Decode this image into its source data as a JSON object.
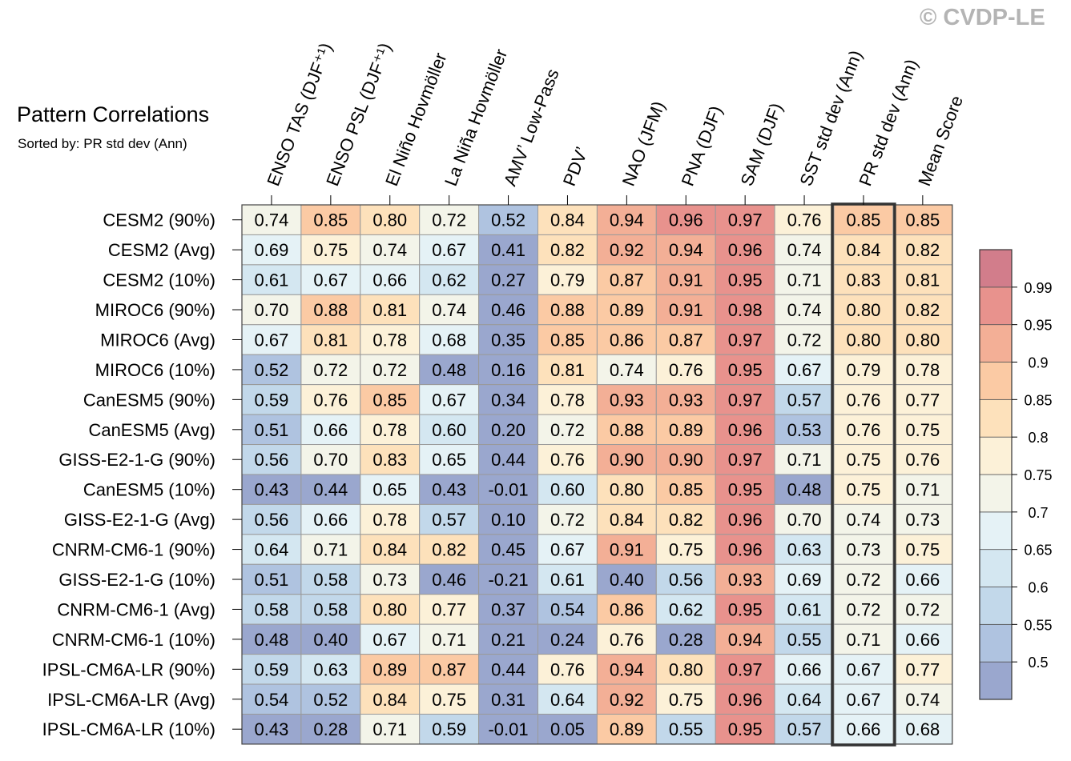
{
  "watermark": "© CVDP-LE",
  "chart_data": {
    "type": "heatmap",
    "title": "Pattern Correlations",
    "subtitle": "Sorted by: PR std dev (Ann)",
    "highlighted_column": "PR std dev (Ann)",
    "columns": [
      "ENSO TAS (DJF⁺¹)",
      "ENSO PSL (DJF⁺¹)",
      "El Niño Hovmöller",
      "La Niña Hovmöller",
      "AMV’ Low-Pass",
      "PDV’",
      "NAO (JFM)",
      "PNA (DJF)",
      "SAM (DJF)",
      "SST std dev (Ann)",
      "PR std dev (Ann)",
      "Mean Score"
    ],
    "rows": [
      "CESM2 (90%)",
      "CESM2 (Avg)",
      "CESM2 (10%)",
      "MIROC6 (90%)",
      "MIROC6 (Avg)",
      "MIROC6 (10%)",
      "CanESM5 (90%)",
      "CanESM5 (Avg)",
      "GISS-E2-1-G (90%)",
      "CanESM5 (10%)",
      "GISS-E2-1-G (Avg)",
      "CNRM-CM6-1 (90%)",
      "GISS-E2-1-G (10%)",
      "CNRM-CM6-1 (Avg)",
      "CNRM-CM6-1 (10%)",
      "IPSL-CM6A-LR (90%)",
      "IPSL-CM6A-LR (Avg)",
      "IPSL-CM6A-LR (10%)"
    ],
    "values": [
      [
        "0.74",
        "0.85",
        "0.80",
        "0.72",
        "0.52",
        "0.84",
        "0.94",
        "0.96",
        "0.97",
        "0.76",
        "0.85",
        "0.85"
      ],
      [
        "0.69",
        "0.75",
        "0.74",
        "0.67",
        "0.41",
        "0.82",
        "0.92",
        "0.94",
        "0.96",
        "0.74",
        "0.84",
        "0.82"
      ],
      [
        "0.61",
        "0.67",
        "0.66",
        "0.62",
        "0.27",
        "0.79",
        "0.87",
        "0.91",
        "0.95",
        "0.71",
        "0.83",
        "0.81"
      ],
      [
        "0.70",
        "0.88",
        "0.81",
        "0.74",
        "0.46",
        "0.88",
        "0.89",
        "0.91",
        "0.98",
        "0.74",
        "0.80",
        "0.82"
      ],
      [
        "0.67",
        "0.81",
        "0.78",
        "0.68",
        "0.35",
        "0.85",
        "0.86",
        "0.87",
        "0.97",
        "0.72",
        "0.80",
        "0.80"
      ],
      [
        "0.52",
        "0.72",
        "0.72",
        "0.48",
        "0.16",
        "0.81",
        "0.74",
        "0.76",
        "0.95",
        "0.67",
        "0.79",
        "0.78"
      ],
      [
        "0.59",
        "0.76",
        "0.85",
        "0.67",
        "0.34",
        "0.78",
        "0.93",
        "0.93",
        "0.97",
        "0.57",
        "0.76",
        "0.77"
      ],
      [
        "0.51",
        "0.66",
        "0.78",
        "0.60",
        "0.20",
        "0.72",
        "0.88",
        "0.89",
        "0.96",
        "0.53",
        "0.76",
        "0.75"
      ],
      [
        "0.56",
        "0.70",
        "0.83",
        "0.65",
        "0.44",
        "0.76",
        "0.90",
        "0.90",
        "0.97",
        "0.71",
        "0.75",
        "0.76"
      ],
      [
        "0.43",
        "0.44",
        "0.65",
        "0.43",
        "-0.01",
        "0.60",
        "0.80",
        "0.85",
        "0.95",
        "0.48",
        "0.75",
        "0.71"
      ],
      [
        "0.56",
        "0.66",
        "0.78",
        "0.57",
        "0.10",
        "0.72",
        "0.84",
        "0.82",
        "0.96",
        "0.70",
        "0.74",
        "0.73"
      ],
      [
        "0.64",
        "0.71",
        "0.84",
        "0.82",
        "0.45",
        "0.67",
        "0.91",
        "0.75",
        "0.96",
        "0.63",
        "0.73",
        "0.75"
      ],
      [
        "0.51",
        "0.58",
        "0.73",
        "0.46",
        "-0.21",
        "0.61",
        "0.40",
        "0.56",
        "0.93",
        "0.69",
        "0.72",
        "0.66"
      ],
      [
        "0.58",
        "0.58",
        "0.80",
        "0.77",
        "0.37",
        "0.54",
        "0.86",
        "0.62",
        "0.95",
        "0.61",
        "0.72",
        "0.72"
      ],
      [
        "0.48",
        "0.40",
        "0.67",
        "0.71",
        "0.21",
        "0.24",
        "0.76",
        "0.28",
        "0.94",
        "0.55",
        "0.71",
        "0.66"
      ],
      [
        "0.59",
        "0.63",
        "0.89",
        "0.87",
        "0.44",
        "0.76",
        "0.94",
        "0.80",
        "0.97",
        "0.66",
        "0.67",
        "0.77"
      ],
      [
        "0.54",
        "0.52",
        "0.84",
        "0.75",
        "0.31",
        "0.64",
        "0.92",
        "0.75",
        "0.96",
        "0.64",
        "0.67",
        "0.74"
      ],
      [
        "0.43",
        "0.28",
        "0.71",
        "0.59",
        "-0.01",
        "0.05",
        "0.89",
        "0.55",
        "0.95",
        "0.57",
        "0.66",
        "0.68"
      ]
    ],
    "colorbar": {
      "levels": [
        "0.5",
        "0.55",
        "0.6",
        "0.65",
        "0.7",
        "0.75",
        "0.8",
        "0.85",
        "0.9",
        "0.95",
        "0.99"
      ],
      "colors": [
        "#9aa7ce",
        "#afc3e0",
        "#c2d8ea",
        "#d4e7f1",
        "#e5f2f6",
        "#f3f4e9",
        "#fcf1d8",
        "#fde1bb",
        "#fbcaa4",
        "#f3af96",
        "#e8928d",
        "#d27d8b"
      ]
    }
  }
}
